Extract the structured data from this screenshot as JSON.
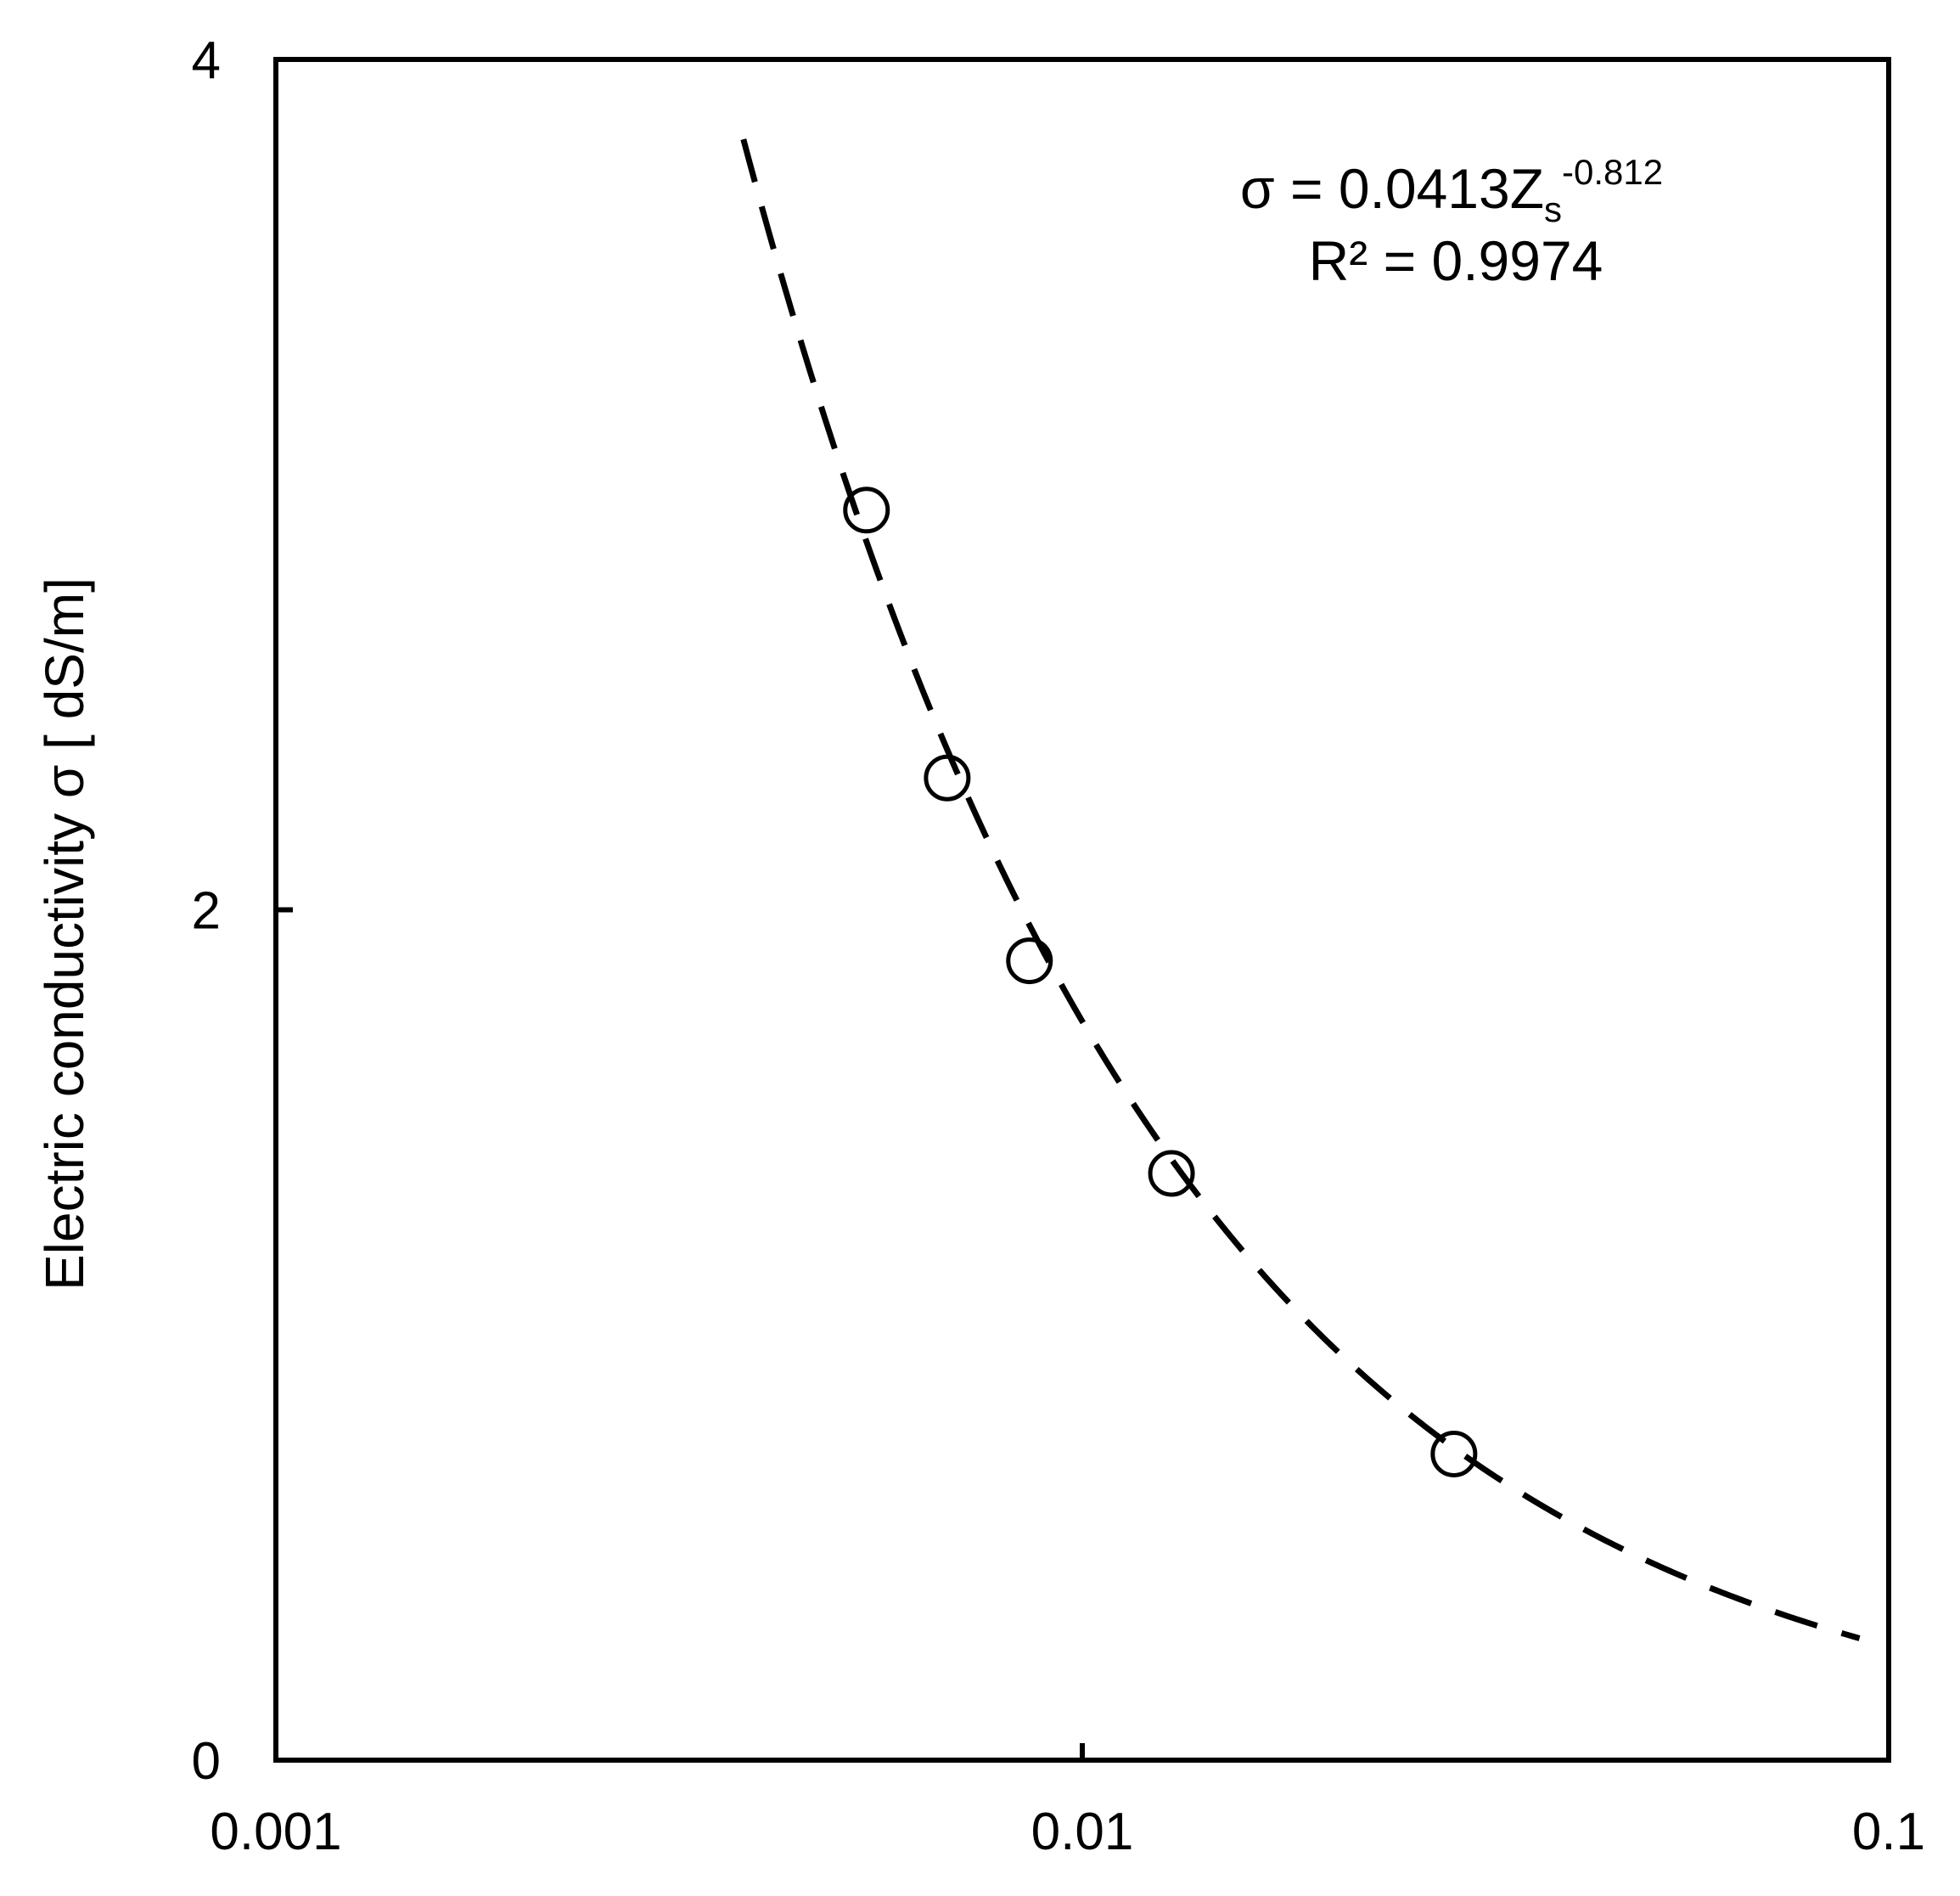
{
  "chart_data": {
    "type": "scatter",
    "xscale": "log",
    "xlim": [
      0.001,
      0.1
    ],
    "ylim": [
      0,
      4
    ],
    "x_ticks": [
      {
        "value": 0.001,
        "label": "0.001"
      },
      {
        "value": 0.01,
        "label": "0.01"
      },
      {
        "value": 0.1,
        "label": "0.1"
      }
    ],
    "y_ticks": [
      {
        "value": 0,
        "label": "0"
      },
      {
        "value": 2,
        "label": "2"
      },
      {
        "value": 4,
        "label": "4"
      }
    ],
    "xlabel": "",
    "ylabel": "Electric conductivity σ [ dS/m]",
    "grid": false,
    "points": [
      {
        "x": 0.0054,
        "y": 2.94
      },
      {
        "x": 0.0068,
        "y": 2.31
      },
      {
        "x": 0.0086,
        "y": 1.88
      },
      {
        "x": 0.0129,
        "y": 1.38
      },
      {
        "x": 0.0289,
        "y": 0.72
      }
    ],
    "trendline": {
      "style": "dashed",
      "coefficient": 0.0413,
      "exponent": -0.812,
      "x_range": [
        0.0038,
        0.092
      ]
    },
    "annotation": {
      "equation_main": "σ = 0.0413Z",
      "equation_sub": "s",
      "equation_sup": "-0.812",
      "r_squared": "R² = 0.9974"
    }
  }
}
